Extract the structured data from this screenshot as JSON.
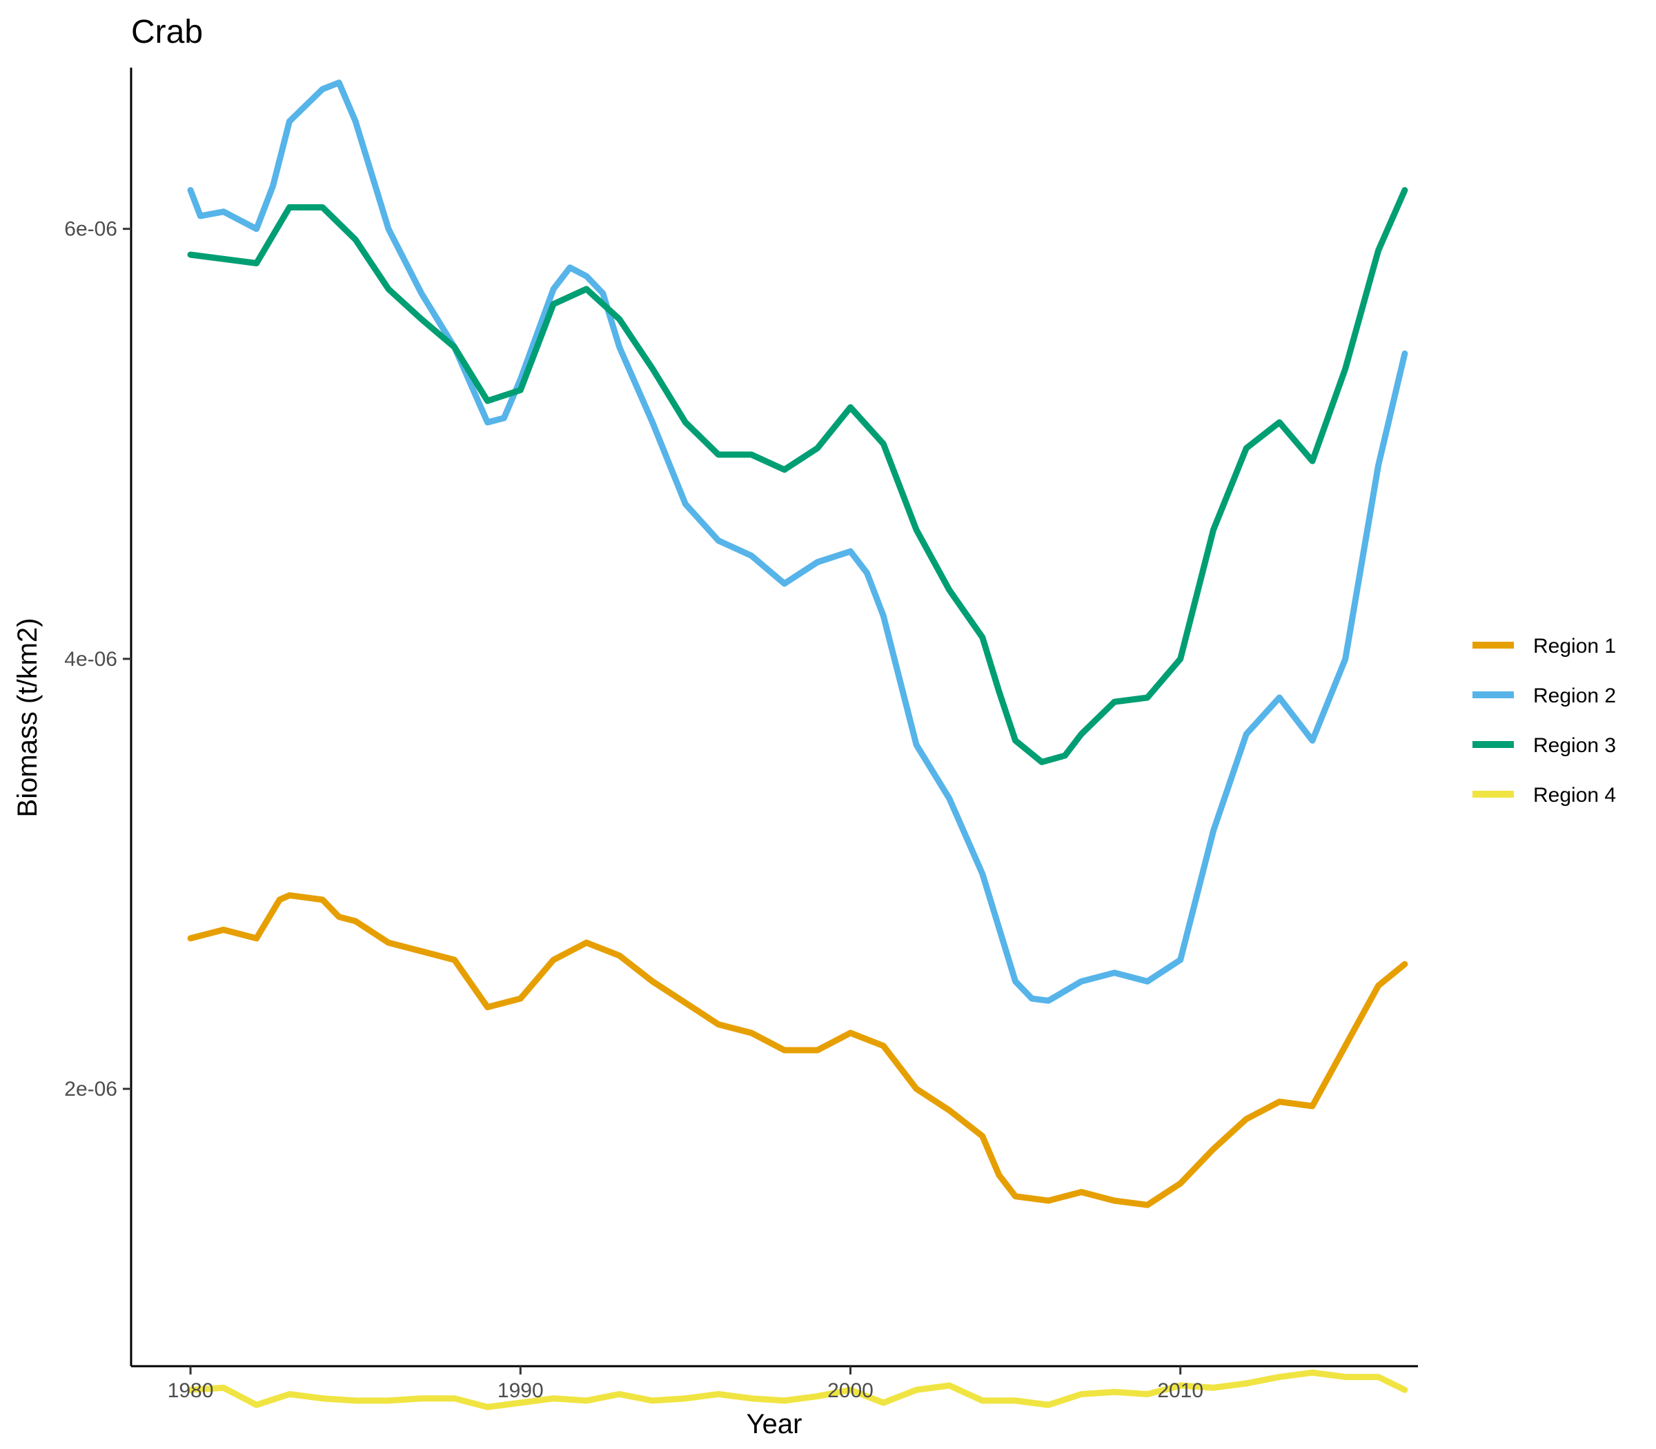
{
  "chart_data": {
    "type": "line",
    "title": "Crab",
    "xlabel": "Year",
    "ylabel": "Biomass (t/km2)",
    "xlim": [
      1978.2,
      2017.2
    ],
    "ylim": [
      7.1e-07,
      6.75e-06
    ],
    "x_ticks": [
      1980,
      1990,
      2000,
      2010
    ],
    "x_tick_labels": [
      "1980",
      "1990",
      "2000",
      "2010"
    ],
    "y_ticks": [
      2e-06,
      4e-06,
      6e-06
    ],
    "y_tick_labels": [
      "2e-06",
      "4e-06",
      "6e-06"
    ],
    "grid": false,
    "legend_position": "right",
    "series": [
      {
        "name": "Region 1",
        "color": "#E69F00",
        "x": [
          1980,
          1981,
          1982,
          1982.7,
          1983,
          1984,
          1984.5,
          1985,
          1986,
          1987,
          1988,
          1989,
          1990,
          1991,
          1992,
          1993,
          1994,
          1995,
          1996,
          1997,
          1998,
          1999,
          2000,
          2001,
          2002,
          2003,
          2004,
          2004.5,
          2005,
          2006,
          2007,
          2008,
          2009,
          2010,
          2011,
          2012,
          2013,
          2014,
          2015,
          2016,
          2016.8
        ],
        "y": [
          2.7e-06,
          2.74e-06,
          2.7e-06,
          2.88e-06,
          2.9e-06,
          2.88e-06,
          2.8e-06,
          2.78e-06,
          2.68e-06,
          2.64e-06,
          2.6e-06,
          2.38e-06,
          2.42e-06,
          2.6e-06,
          2.68e-06,
          2.62e-06,
          2.5e-06,
          2.4e-06,
          2.3e-06,
          2.26e-06,
          2.18e-06,
          2.18e-06,
          2.26e-06,
          2.2e-06,
          2e-06,
          1.9e-06,
          1.78e-06,
          1.6e-06,
          1.5e-06,
          1.48e-06,
          1.52e-06,
          1.48e-06,
          1.46e-06,
          1.56e-06,
          1.72e-06,
          1.86e-06,
          1.94e-06,
          1.92e-06,
          2.2e-06,
          2.48e-06,
          2.58e-06
        ]
      },
      {
        "name": "Region 2",
        "color": "#56B4E9",
        "x": [
          1980,
          1980.3,
          1981,
          1982,
          1982.5,
          1983,
          1984,
          1984.5,
          1985,
          1986,
          1987,
          1988,
          1989,
          1989.5,
          1990,
          1991,
          1991.5,
          1992,
          1992.5,
          1993,
          1994,
          1995,
          1996,
          1997,
          1998,
          1999,
          2000,
          2000.5,
          2001,
          2002,
          2003,
          2004,
          2005,
          2005.5,
          2006,
          2007,
          2008,
          2009,
          2010,
          2011,
          2012,
          2013,
          2014,
          2015,
          2016,
          2016.8
        ],
        "y": [
          6.18e-06,
          6.06e-06,
          6.08e-06,
          6e-06,
          6.2e-06,
          6.5e-06,
          6.65e-06,
          6.68e-06,
          6.5e-06,
          6e-06,
          5.7e-06,
          5.45e-06,
          5.1e-06,
          5.12e-06,
          5.3e-06,
          5.72e-06,
          5.82e-06,
          5.78e-06,
          5.7e-06,
          5.45e-06,
          5.1e-06,
          4.72e-06,
          4.55e-06,
          4.48e-06,
          4.35e-06,
          4.45e-06,
          4.5e-06,
          4.4e-06,
          4.2e-06,
          3.6e-06,
          3.35e-06,
          3e-06,
          2.5e-06,
          2.42e-06,
          2.41e-06,
          2.5e-06,
          2.54e-06,
          2.5e-06,
          2.6e-06,
          3.2e-06,
          3.65e-06,
          3.82e-06,
          3.62e-06,
          4e-06,
          4.9e-06,
          5.42e-06
        ]
      },
      {
        "name": "Region 3",
        "color": "#009E73",
        "x": [
          1980,
          1981,
          1982,
          1983,
          1984,
          1985,
          1986,
          1987,
          1988,
          1989,
          1990,
          1991,
          1992,
          1993,
          1994,
          1995,
          1996,
          1997,
          1998,
          1999,
          2000,
          2001,
          2002,
          2003,
          2004,
          2004.5,
          2005,
          2005.8,
          2006.5,
          2007,
          2008,
          2009,
          2010,
          2011,
          2012,
          2013,
          2014,
          2015,
          2016,
          2016.8
        ],
        "y": [
          5.88e-06,
          5.86e-06,
          5.84e-06,
          6.1e-06,
          6.1e-06,
          5.95e-06,
          5.72e-06,
          5.58e-06,
          5.45e-06,
          5.2e-06,
          5.25e-06,
          5.65e-06,
          5.72e-06,
          5.58e-06,
          5.35e-06,
          5.1e-06,
          4.95e-06,
          4.95e-06,
          4.88e-06,
          4.98e-06,
          5.17e-06,
          5e-06,
          4.6e-06,
          4.32e-06,
          4.1e-06,
          3.85e-06,
          3.62e-06,
          3.52e-06,
          3.55e-06,
          3.65e-06,
          3.8e-06,
          3.82e-06,
          4e-06,
          4.6e-06,
          4.98e-06,
          5.1e-06,
          4.92e-06,
          5.35e-06,
          5.9e-06,
          6.18e-06
        ]
      },
      {
        "name": "Region 4",
        "color": "#F0E442",
        "x": [
          1980,
          1981,
          1982,
          1983,
          1984,
          1985,
          1986,
          1987,
          1988,
          1989,
          1990,
          1991,
          1992,
          1993,
          1994,
          1995,
          1996,
          1997,
          1998,
          1999,
          2000,
          2001,
          2002,
          2003,
          2004,
          2005,
          2006,
          2007,
          2008,
          2009,
          2010,
          2011,
          2012,
          2013,
          2014,
          2015,
          2016,
          2016.8
        ],
        "y": [
          6e-07,
          6.1e-07,
          5.3e-07,
          5.8e-07,
          5.6e-07,
          5.5e-07,
          5.5e-07,
          5.6e-07,
          5.6e-07,
          5.2e-07,
          5.4e-07,
          5.6e-07,
          5.5e-07,
          5.8e-07,
          5.5e-07,
          5.6e-07,
          5.8e-07,
          5.6e-07,
          5.5e-07,
          5.7e-07,
          6e-07,
          5.4e-07,
          6e-07,
          6.2e-07,
          5.5e-07,
          5.5e-07,
          5.3e-07,
          5.8e-07,
          5.9e-07,
          5.8e-07,
          6.2e-07,
          6.1e-07,
          6.3e-07,
          6.6e-07,
          6.8e-07,
          6.6e-07,
          6.6e-07,
          6e-07
        ]
      }
    ]
  }
}
